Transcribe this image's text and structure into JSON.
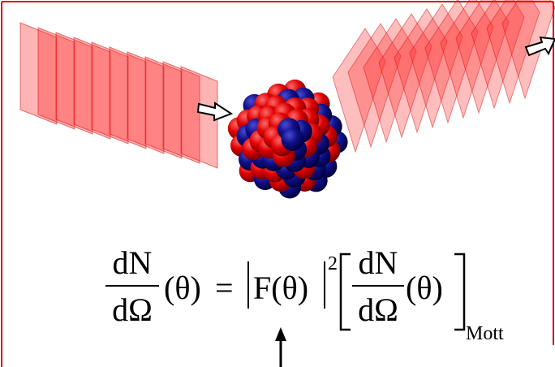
{
  "formula": {
    "numerator": "dN",
    "denominator": "dΩ",
    "argument": "(θ)",
    "equals": "=",
    "form_factor": "F(θ)",
    "exponent": "2",
    "subscript": "Mott"
  }
}
